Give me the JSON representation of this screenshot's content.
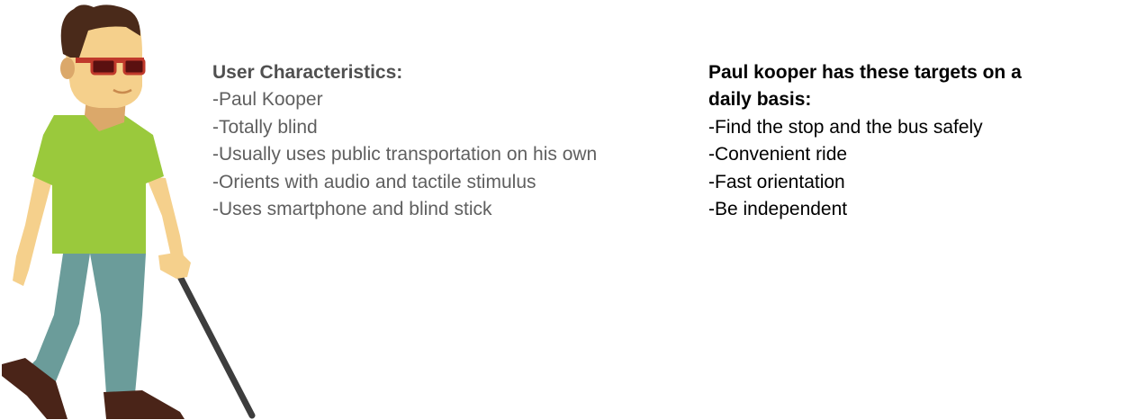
{
  "user_characteristics": {
    "heading": "User Characteristics:",
    "items": [
      "-Paul Kooper",
      "-Totally blind",
      "-Usually uses public transportation on his own",
      "-Orients with audio and tactile stimulus",
      "-Uses smartphone and blind stick"
    ]
  },
  "targets": {
    "heading": "Paul kooper has these targets on a daily basis:",
    "items": [
      "-Find the stop and the bus safely",
      "-Convenient ride",
      "-Fast orientation",
      "-Be independent"
    ]
  },
  "colors": {
    "shirt": "#9ac93c",
    "pants": "#6b9c9a",
    "skin": "#f5d08c",
    "hair": "#4a2a1a",
    "glasses": "#c0392b",
    "shoes": "#4a2418",
    "cane": "#3d3d3d"
  }
}
